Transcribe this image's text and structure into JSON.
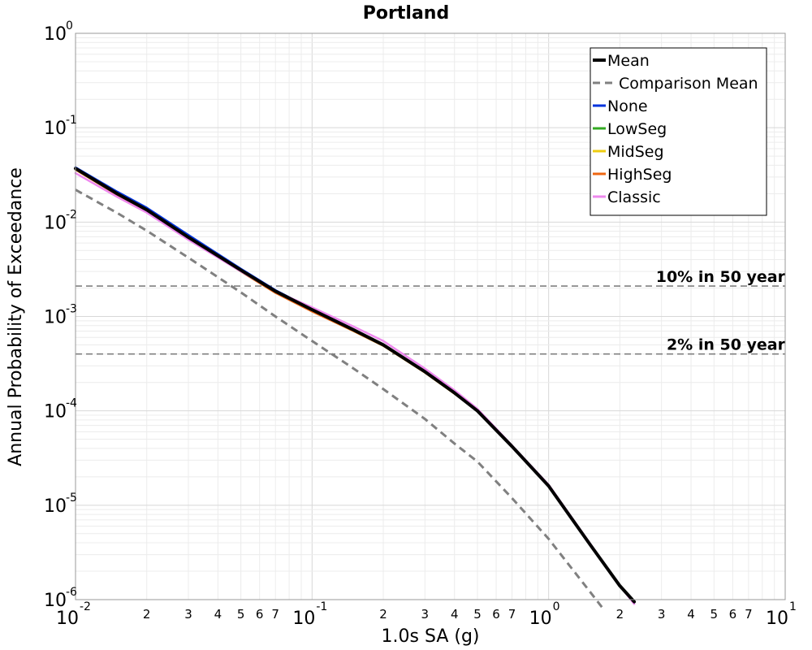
{
  "chart_data": {
    "type": "line",
    "title": "Portland",
    "xlabel": "1.0s SA (g)",
    "ylabel": "Annual Probability of Exceedance",
    "xscale": "log",
    "yscale": "log",
    "xlim": [
      0.01,
      10
    ],
    "ylim": [
      1e-06,
      1
    ],
    "grid": true,
    "legend_position": "top-right",
    "x_major_ticks": [
      {
        "base": "10",
        "exp": "-2"
      },
      {
        "base": "10",
        "exp": "-1"
      },
      {
        "base": "10",
        "exp": "0"
      },
      {
        "base": "10",
        "exp": "1"
      }
    ],
    "x_minor_tick_labels": [
      "2",
      "3",
      "4",
      "5",
      "6",
      "7"
    ],
    "y_major_ticks": [
      {
        "base": "10",
        "exp": "0"
      },
      {
        "base": "10",
        "exp": "-1"
      },
      {
        "base": "10",
        "exp": "-2"
      },
      {
        "base": "10",
        "exp": "-3"
      },
      {
        "base": "10",
        "exp": "-4"
      },
      {
        "base": "10",
        "exp": "-5"
      },
      {
        "base": "10",
        "exp": "-6"
      }
    ],
    "reference_lines": [
      {
        "label": "10% in 50 year",
        "y": 0.0021
      },
      {
        "label": "2% in 50 year",
        "y": 0.0004
      }
    ],
    "series": [
      {
        "name": "Mean",
        "color": "#000000",
        "style": "solid-thick",
        "x": [
          0.01,
          0.015,
          0.02,
          0.03,
          0.05,
          0.07,
          0.1,
          0.15,
          0.2,
          0.3,
          0.4,
          0.5,
          0.7,
          1.0,
          1.5,
          2.0,
          2.3
        ],
        "y": [
          0.037,
          0.02,
          0.0135,
          0.0069,
          0.0031,
          0.00185,
          0.00118,
          0.00072,
          0.0005,
          0.00026,
          0.000155,
          0.0001,
          4.2e-05,
          1.6e-05,
          3.8e-06,
          1.4e-06,
          9.5e-07
        ]
      },
      {
        "name": "Comparison Mean",
        "color": "#808080",
        "style": "dashed",
        "x": [
          0.01,
          0.015,
          0.02,
          0.03,
          0.05,
          0.07,
          0.1,
          0.15,
          0.2,
          0.3,
          0.4,
          0.5,
          0.7,
          1.0,
          1.5,
          1.7
        ],
        "y": [
          0.022,
          0.0125,
          0.0081,
          0.0042,
          0.0018,
          0.001,
          0.00055,
          0.00028,
          0.00017,
          8.2e-05,
          4.5e-05,
          2.9e-05,
          1.19e-05,
          4.4e-06,
          1.2e-06,
          8e-07
        ]
      },
      {
        "name": "None",
        "color": "#0033dd",
        "style": "solid",
        "x": [
          0.01,
          0.015,
          0.02,
          0.03,
          0.05,
          0.07,
          0.1,
          0.15,
          0.2,
          0.3,
          0.4,
          0.5,
          0.7,
          1.0,
          1.5,
          2.0,
          2.3
        ],
        "y": [
          0.038,
          0.021,
          0.0142,
          0.0073,
          0.0032,
          0.0019,
          0.0012,
          0.00073,
          0.0005,
          0.00026,
          0.000155,
          0.0001,
          4.2e-05,
          1.6e-05,
          3.8e-06,
          1.4e-06,
          9.5e-07
        ]
      },
      {
        "name": "LowSeg",
        "color": "#33aa22",
        "style": "solid",
        "x": [
          0.01,
          0.015,
          0.02,
          0.03,
          0.05,
          0.07,
          0.1,
          0.15,
          0.2,
          0.3,
          0.4,
          0.5,
          0.7,
          1.0,
          1.5,
          2.0,
          2.3
        ],
        "y": [
          0.036,
          0.0195,
          0.0133,
          0.0068,
          0.003,
          0.0018,
          0.00115,
          0.0007,
          0.00049,
          0.000255,
          0.000152,
          0.0001,
          4.2e-05,
          1.6e-05,
          3.8e-06,
          1.4e-06,
          9.5e-07
        ]
      },
      {
        "name": "MidSeg",
        "color": "#eecc11",
        "style": "solid",
        "x": [
          0.01,
          0.015,
          0.02,
          0.03,
          0.05,
          0.07,
          0.1,
          0.15,
          0.2,
          0.3,
          0.4,
          0.5,
          0.7,
          1.0,
          1.5,
          2.0,
          2.3
        ],
        "y": [
          0.036,
          0.0195,
          0.0132,
          0.0067,
          0.003,
          0.0018,
          0.00114,
          0.0007,
          0.00049,
          0.000255,
          0.000152,
          0.0001,
          4.2e-05,
          1.6e-05,
          3.8e-06,
          1.4e-06,
          9.5e-07
        ]
      },
      {
        "name": "HighSeg",
        "color": "#ee6611",
        "style": "solid",
        "x": [
          0.01,
          0.015,
          0.02,
          0.03,
          0.05,
          0.07,
          0.1,
          0.15,
          0.2,
          0.3,
          0.4,
          0.5,
          0.7,
          1.0,
          1.5,
          2.0,
          2.3
        ],
        "y": [
          0.036,
          0.0195,
          0.0132,
          0.0067,
          0.003,
          0.00178,
          0.00113,
          0.0007,
          0.00049,
          0.000255,
          0.000152,
          0.0001,
          4.2e-05,
          1.6e-05,
          3.8e-06,
          1.4e-06,
          9.5e-07
        ]
      },
      {
        "name": "Classic",
        "color": "#ee88ee",
        "style": "solid",
        "x": [
          0.01,
          0.015,
          0.02,
          0.03,
          0.05,
          0.07,
          0.1,
          0.15,
          0.2,
          0.3,
          0.4,
          0.5,
          0.7,
          1.0,
          1.5,
          2.0,
          2.3
        ],
        "y": [
          0.033,
          0.0185,
          0.0126,
          0.0065,
          0.003,
          0.00185,
          0.00125,
          0.00078,
          0.00055,
          0.00028,
          0.000165,
          0.000105,
          4.3e-05,
          1.65e-05,
          3.9e-06,
          1.4e-06,
          9e-07
        ]
      }
    ],
    "legend_order": [
      "Mean",
      "Comparison Mean",
      "None",
      "LowSeg",
      "MidSeg",
      "HighSeg",
      "Classic"
    ]
  }
}
